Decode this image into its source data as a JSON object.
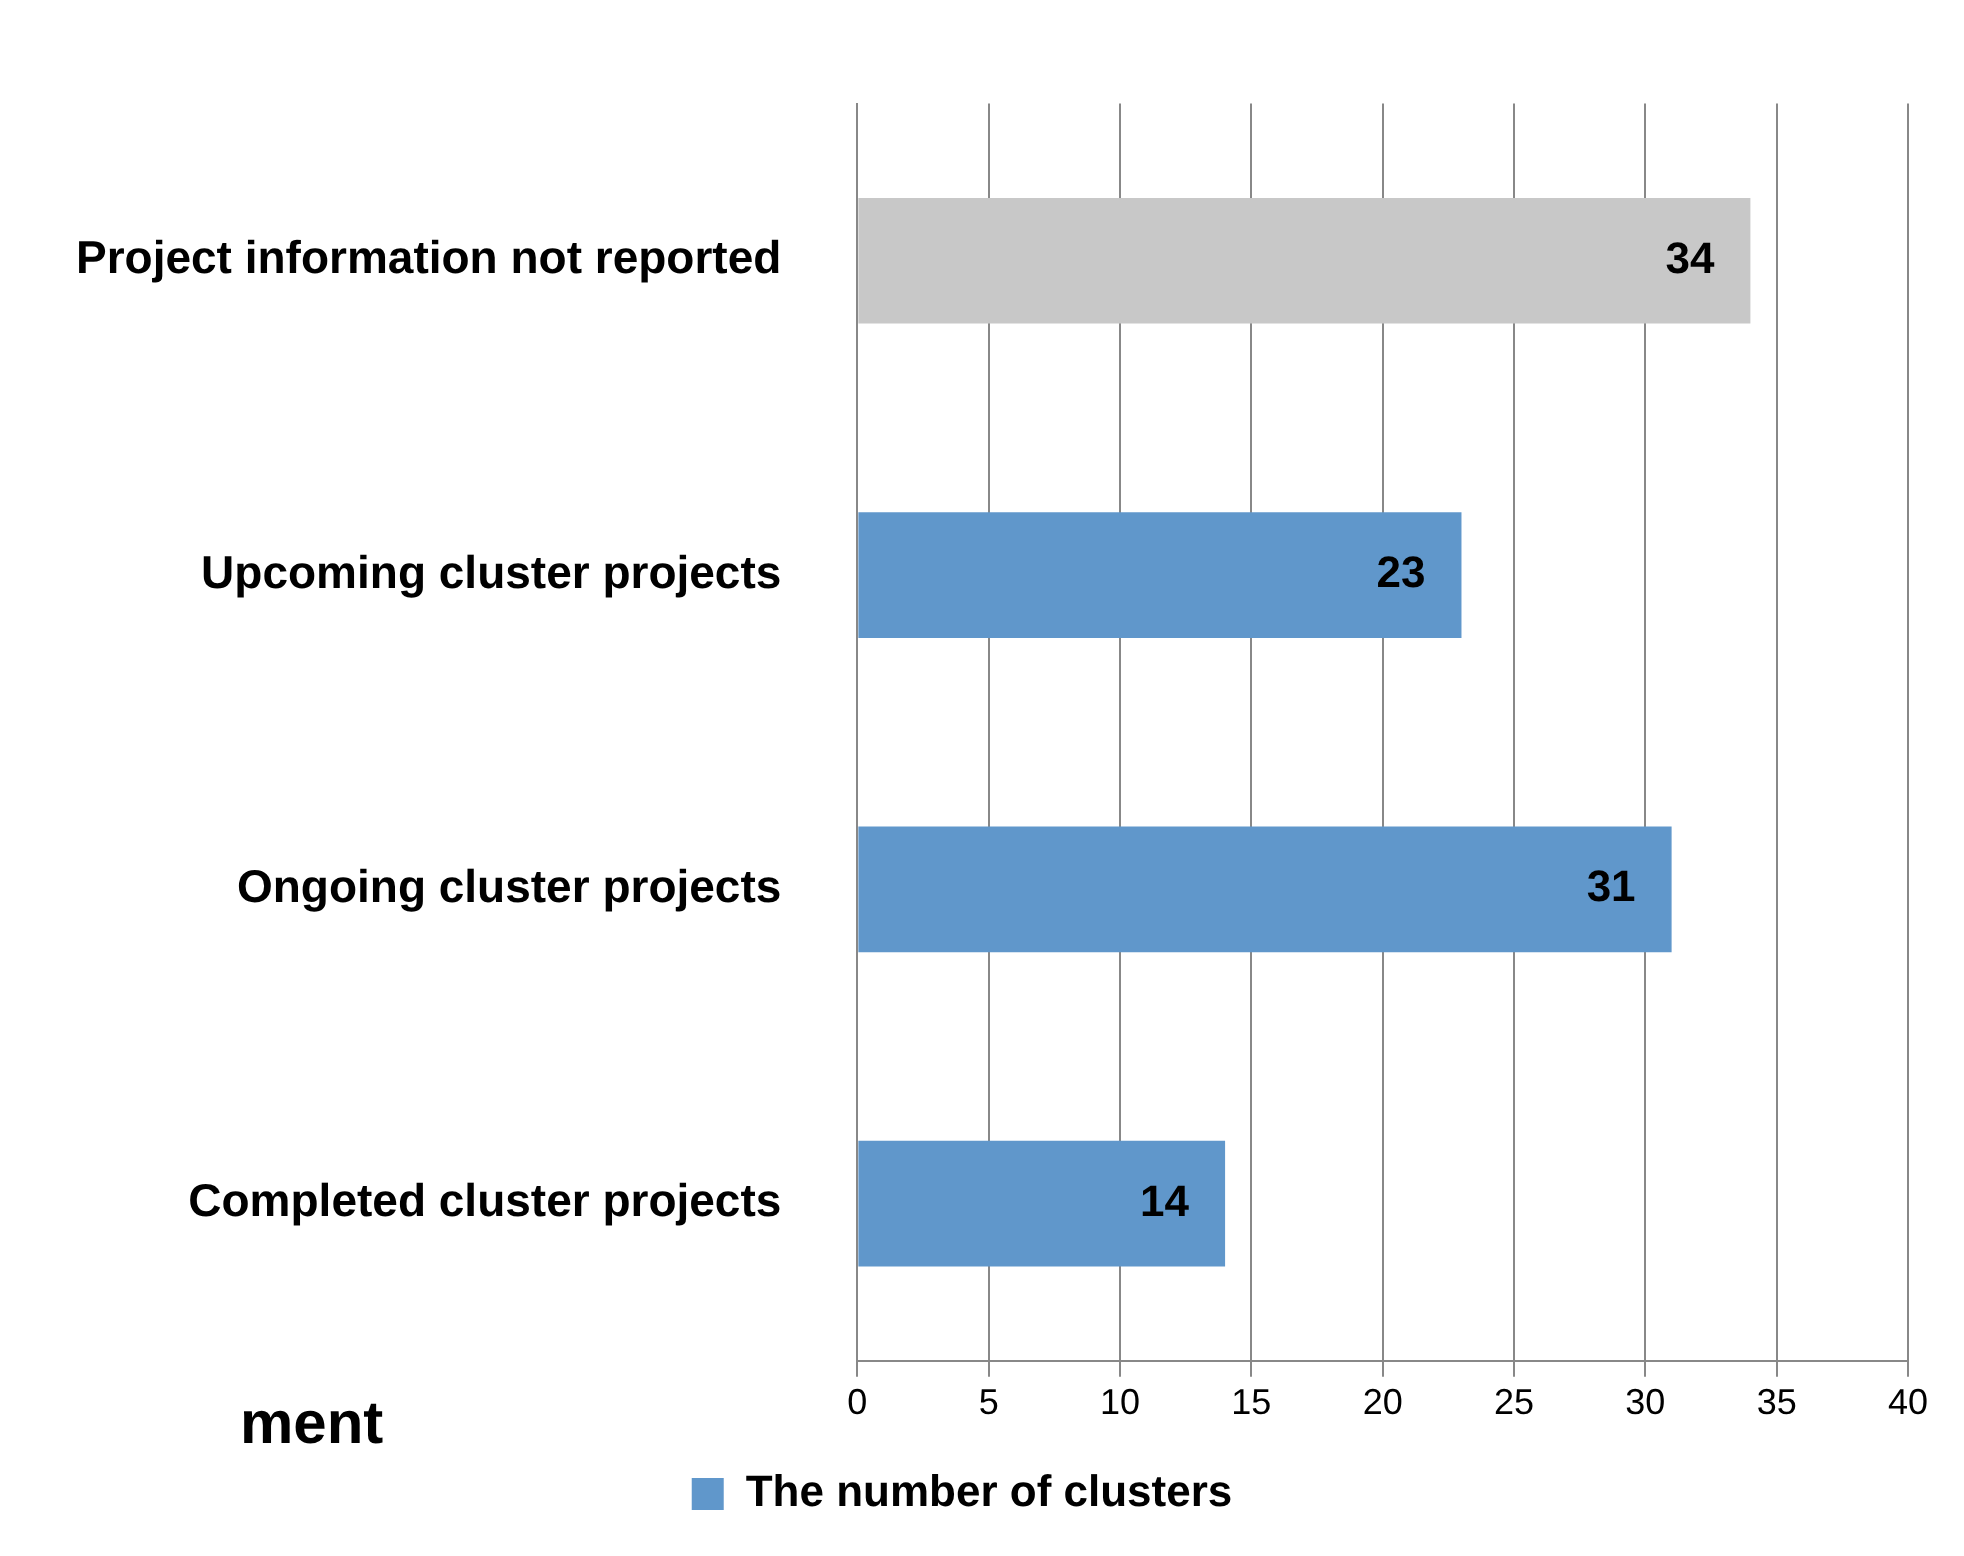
{
  "chart_data": {
    "type": "bar",
    "orientation": "horizontal",
    "categories": [
      "Project information not reported",
      "Upcoming cluster projects",
      "Ongoing cluster projects",
      "Completed cluster projects"
    ],
    "series": [
      {
        "name": "The number of clusters",
        "color": "#6097cb",
        "colors": [
          "#c8c8c8",
          "#6097cb",
          "#6097cb",
          "#6097cb"
        ],
        "values": [
          34,
          23,
          31,
          14
        ]
      }
    ],
    "xlim": [
      0,
      40
    ],
    "xticks": [
      0,
      5,
      10,
      15,
      20,
      25,
      30,
      35,
      40
    ],
    "grid": "x",
    "legend": "bottom",
    "data_labels": true,
    "annotations": [
      "ment"
    ]
  }
}
